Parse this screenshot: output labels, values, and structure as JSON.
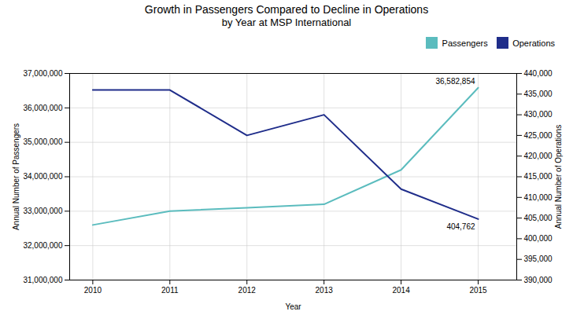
{
  "chart_data": {
    "type": "line",
    "title": "Growth in Passengers Compared to Decline in Operations",
    "subtitle": "by Year at MSP International",
    "xlabel": "Year",
    "ylabel": "Annual Number of Passengers",
    "y2label": "Annual Number of Operations",
    "x": [
      2010,
      2011,
      2012,
      2013,
      2014,
      2015
    ],
    "xlim": [
      2009.7,
      2015.5
    ],
    "xticks": [
      2010,
      2011,
      2012,
      2013,
      2014,
      2015
    ],
    "ylim": [
      31000000,
      37000000
    ],
    "yticks": [
      {
        "value": 31000000,
        "label": "31,000,000"
      },
      {
        "value": 32000000,
        "label": "32,000,000"
      },
      {
        "value": 33000000,
        "label": "33,000,000"
      },
      {
        "value": 34000000,
        "label": "34,000,000"
      },
      {
        "value": 35000000,
        "label": "35,000,000"
      },
      {
        "value": 36000000,
        "label": "36,000,000"
      },
      {
        "value": 37000000,
        "label": "37,000,000"
      }
    ],
    "y2lim": [
      390000,
      440000
    ],
    "y2ticks": [
      {
        "value": 390000,
        "label": "390,000"
      },
      {
        "value": 395000,
        "label": "395,000"
      },
      {
        "value": 400000,
        "label": "400,000"
      },
      {
        "value": 405000,
        "label": "405,000"
      },
      {
        "value": 410000,
        "label": "410,000"
      },
      {
        "value": 415000,
        "label": "415,000"
      },
      {
        "value": 420000,
        "label": "420,000"
      },
      {
        "value": 425000,
        "label": "425,000"
      },
      {
        "value": 430000,
        "label": "430,000"
      },
      {
        "value": 435000,
        "label": "435,000"
      },
      {
        "value": 440000,
        "label": "440,000"
      }
    ],
    "series": [
      {
        "name": "Passengers",
        "color": "#5BBCBE",
        "axis": "y",
        "values": [
          32600000,
          33000000,
          33100000,
          33200000,
          34200000,
          36582854
        ]
      },
      {
        "name": "Operations",
        "color": "#1F2D8A",
        "axis": "y2",
        "values": [
          436000,
          436000,
          425000,
          430000,
          412000,
          404762
        ]
      }
    ],
    "annotations": [
      {
        "text": "36,582,854",
        "x": 2015,
        "y": 36582854
      },
      {
        "text": "404,762",
        "x": 2015,
        "y": 404762,
        "axis": "y2"
      }
    ],
    "grid": true,
    "legend": "right"
  }
}
